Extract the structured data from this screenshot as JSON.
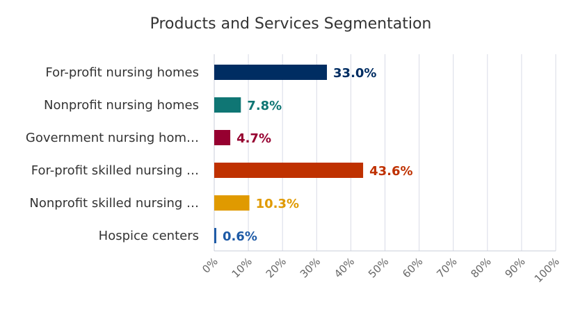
{
  "chart_data": {
    "type": "bar",
    "orientation": "horizontal",
    "title": "Products and Services Segmentation",
    "xlabel": "",
    "ylabel": "",
    "xlim": [
      0,
      100
    ],
    "grid": true,
    "legend": "none",
    "categories": [
      "For-profit nursing homes",
      "Nonprofit nursing homes",
      "Government nursing hom…",
      "For-profit skilled nursing …",
      "Nonprofit skilled nursing …",
      "Hospice centers"
    ],
    "values": [
      33.0,
      7.8,
      4.7,
      43.6,
      10.3,
      0.6
    ],
    "value_labels": [
      "33.0%",
      "7.8%",
      "4.7%",
      "43.6%",
      "10.3%",
      "0.6%"
    ],
    "colors": [
      "#002d62",
      "#0f7674",
      "#960030",
      "#bf3100",
      "#e09a00",
      "#1d5aa6"
    ],
    "ticks": [
      "0%",
      "10%",
      "20%",
      "30%",
      "40%",
      "50%",
      "60%",
      "70%",
      "80%",
      "90%",
      "100%"
    ]
  }
}
